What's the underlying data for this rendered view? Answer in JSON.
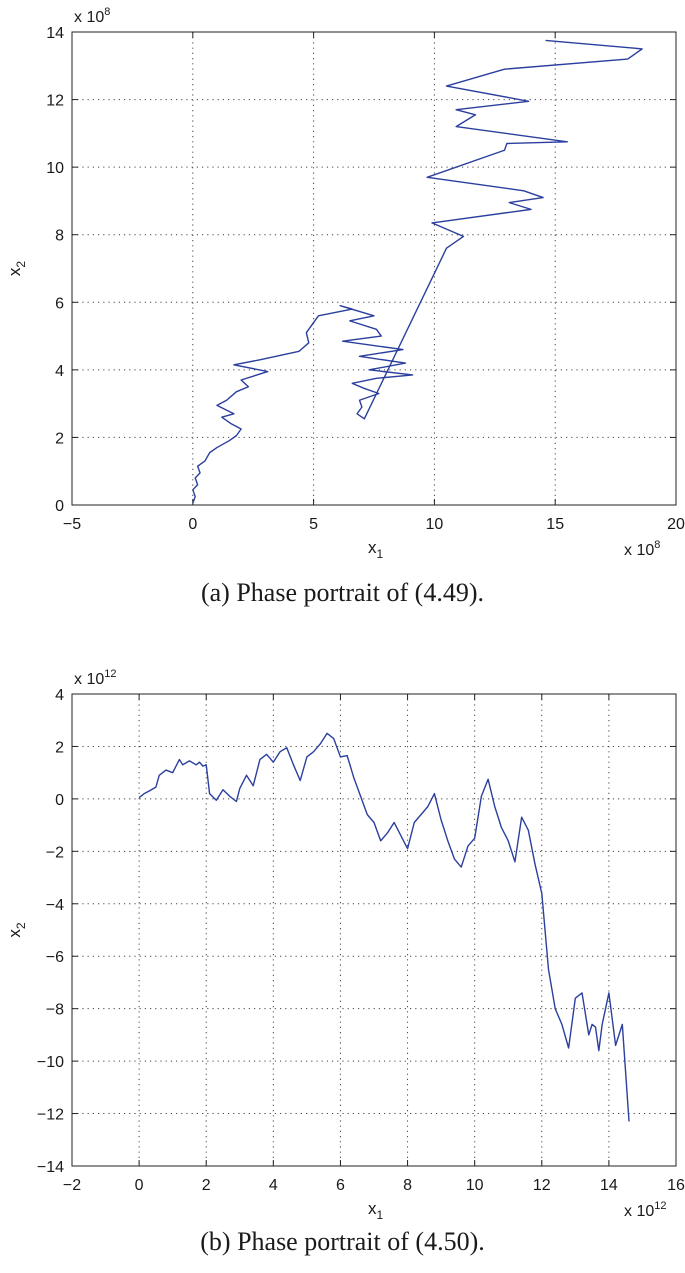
{
  "chart_data": [
    {
      "type": "line",
      "xlabel": "x",
      "xlabel_sub": "1",
      "ylabel": "x",
      "ylabel_sub": "2",
      "x_exponent_label": "x 10",
      "x_exponent": "8",
      "y_exponent_label": "x 10",
      "y_exponent": "8",
      "xlim": [
        -5,
        20
      ],
      "ylim": [
        0,
        14
      ],
      "xticks": [
        -5,
        0,
        5,
        10,
        15,
        20
      ],
      "yticks": [
        0,
        2,
        4,
        6,
        8,
        10,
        12,
        14
      ],
      "xticklabels": [
        "−5",
        "0",
        "5",
        "10",
        "15",
        "20"
      ],
      "yticklabels": [
        "0",
        "2",
        "4",
        "6",
        "8",
        "10",
        "12",
        "14"
      ],
      "grid": true,
      "line_color": "#2b3f9e",
      "caption": "(a)  Phase portrait of (4.49).",
      "series": [
        {
          "x": [
            0,
            0.1,
            0.0,
            0.2,
            0.1,
            0.3,
            0.2,
            0.5,
            0.7,
            1.0,
            1.5,
            1.8,
            2.0,
            1.6,
            1.2,
            1.7,
            1.0,
            1.4,
            1.8,
            2.3,
            2.0,
            3.1,
            1.7,
            2.8,
            4.4,
            4.8,
            4.7,
            4.9,
            5.2,
            6.6,
            6.1,
            7.5,
            6.5,
            7.6,
            7.8,
            6.2,
            8.7,
            6.9,
            8.8,
            7.3,
            9.1,
            7.6,
            6.6,
            7.1,
            7.7,
            6.9,
            7.0,
            6.8,
            7.1,
            10.5,
            11.2,
            9.9,
            14.0,
            13.1,
            14.5,
            13.7,
            9.7,
            12.9,
            13.0,
            15.5,
            10.9,
            11.7,
            10.9,
            13.9,
            10.5,
            12.9,
            18.0,
            18.6,
            14.6
          ],
          "y": [
            0.05,
            0.25,
            0.45,
            0.6,
            0.8,
            0.95,
            1.15,
            1.3,
            1.55,
            1.7,
            1.9,
            2.05,
            2.25,
            2.4,
            2.6,
            2.7,
            2.95,
            3.1,
            3.35,
            3.5,
            3.7,
            3.95,
            4.15,
            4.3,
            4.55,
            4.8,
            5.1,
            5.3,
            5.6,
            5.8,
            5.9,
            5.6,
            5.45,
            5.2,
            5.0,
            4.85,
            4.6,
            4.4,
            4.2,
            4.0,
            3.85,
            3.75,
            3.6,
            3.45,
            3.3,
            3.1,
            2.9,
            2.7,
            2.55,
            7.6,
            7.95,
            8.35,
            8.75,
            8.95,
            9.1,
            9.3,
            9.7,
            10.5,
            10.7,
            10.75,
            11.2,
            11.55,
            11.7,
            11.95,
            12.4,
            12.9,
            13.2,
            13.5,
            13.75
          ]
        }
      ]
    },
    {
      "type": "line",
      "xlabel": "x",
      "xlabel_sub": "1",
      "ylabel": "x",
      "ylabel_sub": "2",
      "x_exponent_label": "x 10",
      "x_exponent": "12",
      "y_exponent_label": "x 10",
      "y_exponent": "12",
      "xlim": [
        -2,
        16
      ],
      "ylim": [
        -14,
        4
      ],
      "xticks": [
        -2,
        0,
        2,
        4,
        6,
        8,
        10,
        12,
        14,
        16
      ],
      "yticks": [
        -14,
        -12,
        -10,
        -8,
        -6,
        -4,
        -2,
        0,
        2,
        4
      ],
      "xticklabels": [
        "−2",
        "0",
        "2",
        "4",
        "6",
        "8",
        "10",
        "12",
        "14",
        "16"
      ],
      "yticklabels": [
        "−14",
        "−12",
        "−10",
        "−8",
        "−6",
        "−4",
        "−2",
        "0",
        "2",
        "4"
      ],
      "grid": true,
      "line_color": "#2b3f9e",
      "caption": "(b)  Phase portrait of (4.50).",
      "series": [
        {
          "x": [
            0,
            0.15,
            0.3,
            0.5,
            0.6,
            0.8,
            1.0,
            1.2,
            1.3,
            1.5,
            1.7,
            1.8,
            1.9,
            2.0,
            2.1,
            2.3,
            2.5,
            2.7,
            2.9,
            3.0,
            3.2,
            3.4,
            3.6,
            3.8,
            4.0,
            4.2,
            4.4,
            4.6,
            4.8,
            5.0,
            5.2,
            5.4,
            5.6,
            5.8,
            6.0,
            6.2,
            6.4,
            6.6,
            6.8,
            7.0,
            7.2,
            7.4,
            7.6,
            7.8,
            8.0,
            8.2,
            8.4,
            8.6,
            8.8,
            9.0,
            9.2,
            9.4,
            9.6,
            9.8,
            10.0,
            10.2,
            10.4,
            10.6,
            10.8,
            11.0,
            11.2,
            11.4,
            11.6,
            11.8,
            12.0,
            12.2,
            12.4,
            12.6,
            12.8,
            13.0,
            13.2,
            13.4,
            13.5,
            13.6,
            13.7,
            13.8,
            14.0,
            14.2,
            14.4,
            14.6
          ],
          "y": [
            0.05,
            0.2,
            0.3,
            0.45,
            0.9,
            1.1,
            1.0,
            1.5,
            1.3,
            1.45,
            1.3,
            1.4,
            1.25,
            1.3,
            0.2,
            -0.05,
            0.35,
            0.1,
            -0.1,
            0.4,
            0.9,
            0.5,
            1.5,
            1.7,
            1.4,
            1.8,
            1.95,
            1.3,
            0.7,
            1.6,
            1.8,
            2.1,
            2.5,
            2.3,
            1.6,
            1.65,
            0.8,
            0.1,
            -0.6,
            -0.9,
            -1.6,
            -1.3,
            -0.9,
            -1.4,
            -1.9,
            -0.9,
            -0.6,
            -0.3,
            0.2,
            -0.8,
            -1.6,
            -2.3,
            -2.6,
            -1.8,
            -1.5,
            0.1,
            0.75,
            -0.3,
            -1.1,
            -1.6,
            -2.4,
            -0.7,
            -1.2,
            -2.5,
            -3.6,
            -6.5,
            -8.0,
            -8.6,
            -9.5,
            -7.6,
            -7.4,
            -9.0,
            -8.6,
            -8.7,
            -9.6,
            -8.6,
            -7.4,
            -9.4,
            -8.6,
            -12.3
          ]
        }
      ]
    }
  ]
}
